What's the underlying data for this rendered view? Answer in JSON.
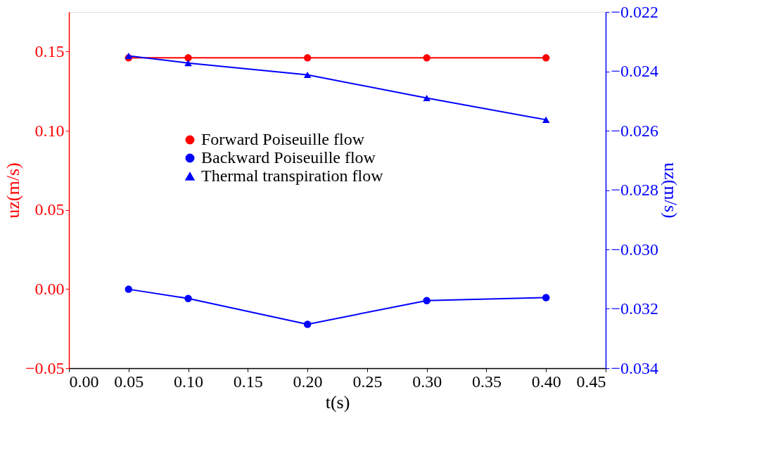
{
  "chart_data": {
    "type": "line",
    "xlabel": "t(s)",
    "ylabel": "uz(m/s)",
    "y2label": "uz(m/s)",
    "x": [
      0.05,
      0.1,
      0.2,
      0.3,
      0.4
    ],
    "series": [
      {
        "name": "Forward Poiseuille flow",
        "color": "#ff0000",
        "marker": "circle",
        "values": [
          0.146,
          0.146,
          0.146,
          0.146,
          0.146
        ]
      },
      {
        "name": "Backward Poiseuille flow",
        "color": "#0000ff",
        "marker": "circle",
        "axis": "y2",
        "values": [
          -0.03134,
          -0.03165,
          -0.03252,
          -0.03172,
          -0.03162
        ]
      },
      {
        "name": "Thermal transpiration flow",
        "color": "#0000ff",
        "marker": "triangle",
        "axis": "y2",
        "values": [
          -0.02348,
          -0.02372,
          -0.02412,
          -0.0249,
          -0.02563
        ]
      }
    ],
    "xlim": [
      0,
      0.45
    ],
    "xticks": [
      {
        "value": 0,
        "label": "0.00"
      },
      0.05,
      {
        "value": 0.1,
        "label": "0.10"
      },
      0.15,
      {
        "value": 0.2,
        "label": "0.20"
      },
      0.25,
      {
        "value": 0.3,
        "label": "0.30"
      },
      0.35,
      {
        "value": 0.4,
        "label": "0.40"
      },
      0.45
    ],
    "ylim": [
      -0.05,
      0.175
    ],
    "yticks": [
      {
        "value": -0.05,
        "label": "−0.05"
      },
      {
        "value": 0,
        "label": "0.00"
      },
      0.05,
      {
        "value": 0.1,
        "label": "0.10"
      },
      0.15
    ],
    "y2lim": [
      -0.034,
      -0.022
    ],
    "y2ticks": [
      {
        "value": -0.034,
        "label": "−0.034"
      },
      {
        "value": -0.032,
        "label": "−0.032"
      },
      {
        "value": -0.03,
        "label": "−0.030"
      },
      {
        "value": -0.028,
        "label": "−0.028"
      },
      {
        "value": -0.026,
        "label": "−0.026"
      },
      {
        "value": -0.024,
        "label": "−0.024"
      },
      {
        "value": -0.022,
        "label": "−0.022"
      }
    ],
    "legend": "center",
    "grid": false,
    "line_style": "solid"
  }
}
